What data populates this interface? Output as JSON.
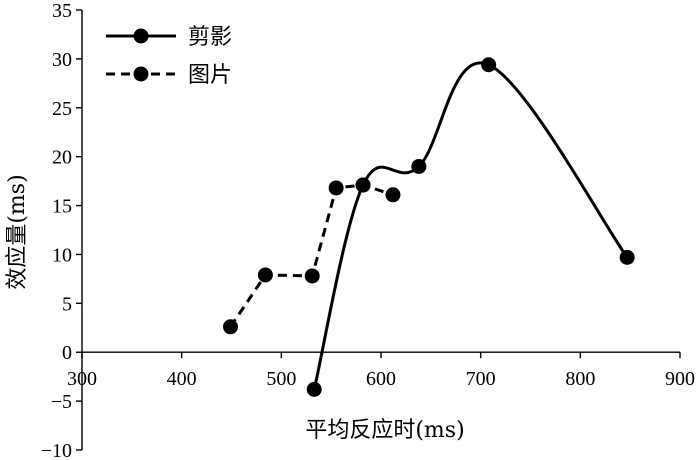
{
  "chart_data": {
    "type": "line",
    "xlabel": "平均反应时(ms)",
    "ylabel": "效应量(ms)",
    "xlim": [
      300,
      900
    ],
    "ylim": [
      -10,
      35
    ],
    "xticks": [
      300,
      400,
      500,
      600,
      700,
      800,
      900
    ],
    "yticks": [
      -10,
      -5,
      0,
      5,
      10,
      15,
      20,
      25,
      30,
      35
    ],
    "x_axis_at_y": 0,
    "grid": false,
    "legend_position": "top-left",
    "series": [
      {
        "name": "剪影",
        "line_style": "solid",
        "smooth": true,
        "color": "#000000",
        "points": [
          {
            "x": 533,
            "y": -3.8
          },
          {
            "x": 582,
            "y": 17.1
          },
          {
            "x": 638,
            "y": 19.0
          },
          {
            "x": 708,
            "y": 29.4
          },
          {
            "x": 847,
            "y": 9.7
          }
        ]
      },
      {
        "name": "图片",
        "line_style": "dashed",
        "smooth": false,
        "color": "#000000",
        "points": [
          {
            "x": 449,
            "y": 2.6
          },
          {
            "x": 484,
            "y": 7.9
          },
          {
            "x": 531,
            "y": 7.8
          },
          {
            "x": 555,
            "y": 16.8
          },
          {
            "x": 582,
            "y": 17.1
          },
          {
            "x": 612,
            "y": 16.1
          }
        ]
      }
    ]
  }
}
